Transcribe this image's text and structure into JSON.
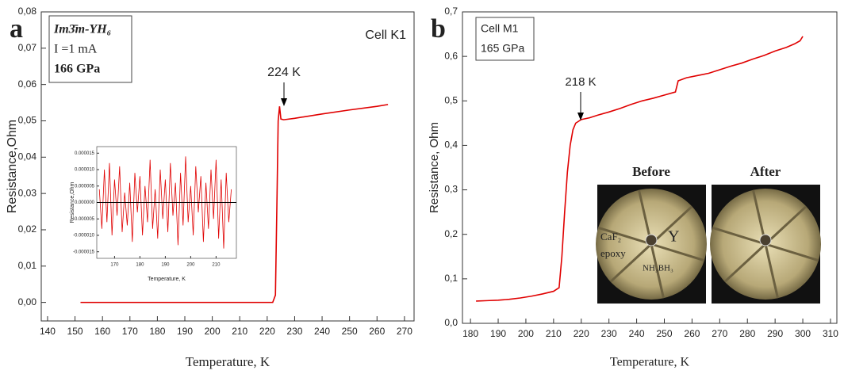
{
  "chart_data": [
    {
      "type": "line",
      "panel_label": "a",
      "color": "#e00000",
      "x_label": "Temperature, K",
      "y_label": "Resistance,Ohm",
      "annotations": [
        "Cell K1",
        "224 K"
      ],
      "legend_lines": [
        "Im3̄m-YH₆",
        "I =1 mA",
        "166 GPa"
      ],
      "x": [
        152,
        160,
        170,
        180,
        190,
        200,
        210,
        220,
        222,
        223,
        223.6,
        224,
        224.5,
        225,
        226,
        230,
        240,
        250,
        260,
        264
      ],
      "values": [
        0,
        0,
        0,
        0,
        0,
        0,
        0,
        0,
        0,
        0.002,
        0.03,
        0.05,
        0.054,
        0.0505,
        0.0503,
        0.0507,
        0.0519,
        0.053,
        0.054,
        0.0545
      ],
      "xlim": [
        137.7,
        273.5
      ],
      "ylim": [
        -0.0051,
        0.08
      ],
      "xticks": [
        140,
        150,
        160,
        170,
        180,
        190,
        200,
        210,
        220,
        230,
        240,
        250,
        260,
        270
      ],
      "yticks": [
        {
          "value": 0,
          "label": "0,00"
        },
        {
          "value": 0.01,
          "label": "0,01"
        },
        {
          "value": 0.02,
          "label": "0,02"
        },
        {
          "value": 0.03,
          "label": "0,03"
        },
        {
          "value": 0.04,
          "label": "0,04"
        },
        {
          "value": 0.05,
          "label": "0,05"
        },
        {
          "value": 0.06,
          "label": "0,06"
        },
        {
          "value": 0.07,
          "label": "0,07"
        },
        {
          "value": 0.08,
          "label": "0,08"
        }
      ]
    },
    {
      "type": "line",
      "panel_label": "b",
      "color": "#e00000",
      "x_label": "Temperature, K",
      "y_label": "Resistance, Ohm",
      "annotations": [
        "Cell M1",
        "165 GPa",
        "218 K"
      ],
      "photo_labels": [
        "Before",
        "After"
      ],
      "photo_annotations": [
        "CaF₂",
        "epoxy",
        "Y",
        "NH₃BH₃"
      ],
      "x": [
        182,
        186,
        190,
        194,
        198,
        202,
        206,
        210,
        212,
        213,
        214,
        215,
        216,
        217,
        218,
        220,
        223,
        226,
        230,
        234,
        238,
        242,
        246,
        250,
        254,
        255,
        258,
        262,
        266,
        270,
        274,
        278,
        282,
        286,
        290,
        294,
        297,
        299,
        300
      ],
      "values": [
        0.05,
        0.051,
        0.052,
        0.054,
        0.057,
        0.061,
        0.066,
        0.072,
        0.08,
        0.15,
        0.25,
        0.34,
        0.4,
        0.435,
        0.45,
        0.458,
        0.462,
        0.468,
        0.475,
        0.483,
        0.492,
        0.5,
        0.506,
        0.513,
        0.52,
        0.545,
        0.552,
        0.557,
        0.562,
        0.57,
        0.578,
        0.585,
        0.594,
        0.602,
        0.612,
        0.62,
        0.628,
        0.635,
        0.645
      ],
      "xlim": [
        177.1,
        312.3
      ],
      "ylim": [
        0,
        0.7
      ],
      "xticks": [
        180,
        190,
        200,
        210,
        220,
        230,
        240,
        250,
        260,
        270,
        280,
        290,
        300,
        310
      ],
      "yticks": [
        {
          "value": 0,
          "label": "0,0"
        },
        {
          "value": 0.1,
          "label": "0,1"
        },
        {
          "value": 0.2,
          "label": "0,2"
        },
        {
          "value": 0.3,
          "label": "0,3"
        },
        {
          "value": 0.4,
          "label": "0,4"
        },
        {
          "value": 0.5,
          "label": "0,5"
        },
        {
          "value": 0.6,
          "label": "0,6"
        },
        {
          "value": 0.7,
          "label": "0,7"
        }
      ]
    },
    {
      "type": "line",
      "color": "#e00000",
      "reference_line": 0,
      "x_label": "Temperature, K",
      "y_label": "Resistance,Ohm",
      "x": [
        164,
        165,
        166,
        167,
        168,
        169,
        170,
        171,
        172,
        173,
        174,
        175,
        176,
        177,
        178,
        179,
        180,
        181,
        182,
        183,
        184,
        185,
        186,
        187,
        188,
        189,
        190,
        191,
        192,
        193,
        194,
        195,
        196,
        197,
        198,
        199,
        200,
        201,
        202,
        203,
        204,
        205,
        206,
        207,
        208,
        209,
        210,
        211,
        212,
        213,
        214,
        215,
        216
      ],
      "values": [
        4e-06,
        -8e-06,
        1e-05,
        -6e-06,
        1.2e-05,
        -1e-05,
        7e-06,
        -4e-06,
        1.1e-05,
        -9e-06,
        3e-06,
        -7e-06,
        6e-06,
        -1.2e-05,
        9e-06,
        -3e-06,
        8e-06,
        -1e-05,
        5e-06,
        -6e-06,
        1.3e-05,
        -8e-06,
        4e-06,
        -1.1e-05,
        1e-05,
        -5e-06,
        7e-06,
        -9e-06,
        1.2e-05,
        -4e-06,
        6e-06,
        -1.3e-05,
        9e-06,
        -7e-06,
        1.4e-05,
        -6e-06,
        5e-06,
        -1e-05,
        1.1e-05,
        -3e-06,
        8e-06,
        -1.2e-05,
        6e-06,
        -8e-06,
        1e-05,
        -5e-06,
        1.3e-05,
        -1.1e-05,
        7e-06,
        -1.4e-05,
        9e-06,
        -6e-06,
        4e-06
      ],
      "xlim": [
        163,
        218
      ],
      "ylim": [
        -1.7e-05,
        1.7e-05
      ],
      "xticks": [
        170,
        180,
        190,
        200,
        210
      ],
      "yticks": [
        {
          "value": -1.5e-05,
          "label": "-0.000015"
        },
        {
          "value": -1e-05,
          "label": "-0.000010"
        },
        {
          "value": -5e-06,
          "label": "-0.000005"
        },
        {
          "value": 0,
          "label": "0.000000"
        },
        {
          "value": 5e-06,
          "label": "0.000005"
        },
        {
          "value": 1e-05,
          "label": "0.000010"
        },
        {
          "value": 1.5e-05,
          "label": "0.000015"
        }
      ]
    }
  ]
}
